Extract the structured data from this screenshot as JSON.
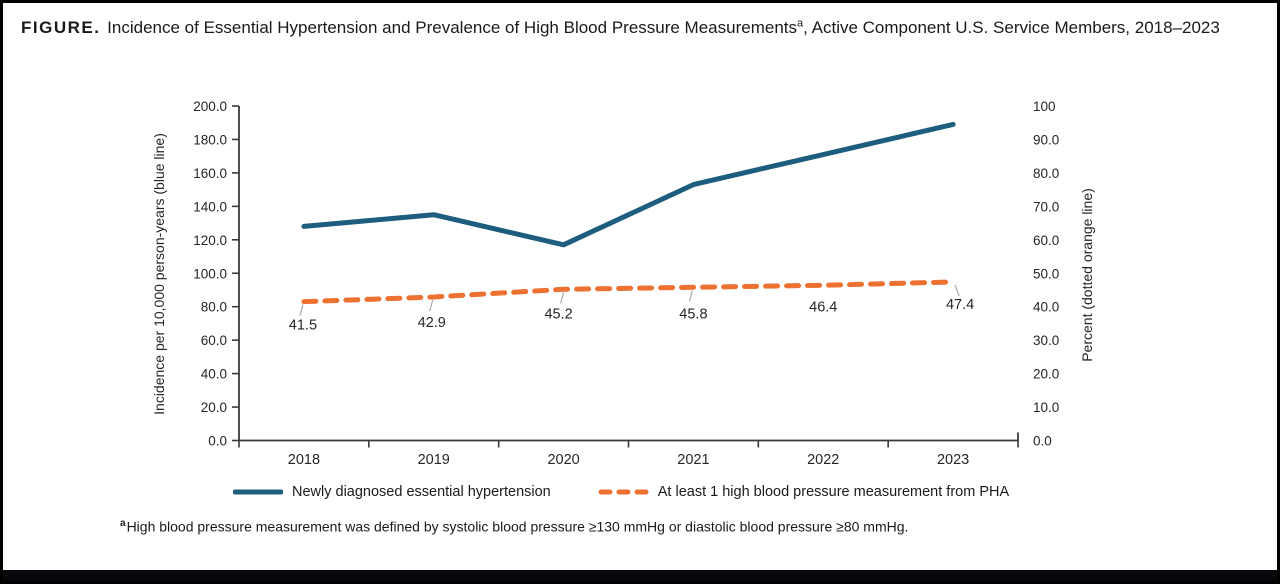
{
  "title": {
    "label": "FIGURE.",
    "text_before_sup": " Incidence of Essential Hypertension and Prevalence of High Blood Pressure Measurements",
    "superscript": "a",
    "text_after_sup": ", Active Component U.S. Service Members, 2018–2023"
  },
  "footnote": {
    "superscript": "a",
    "text": "High blood pressure measurement was defined by systolic blood pressure ≥130 mmHg or diastolic blood pressure ≥80 mmHg."
  },
  "legend": {
    "items": [
      {
        "label": "Newly diagnosed essential hypertension",
        "color": "#1d5d7e",
        "style": "solid"
      },
      {
        "label": "At least 1 high blood pressure measurement from PHA",
        "color": "#ed7232",
        "style": "dashed"
      }
    ]
  },
  "colors": {
    "blue_line": "#1d5d7e",
    "orange_line": "#ed7232",
    "axis": "#3a3a3a",
    "tick_text": "#262626",
    "leader_line": "#aaaaaa",
    "frame_bar": "#08080c"
  },
  "chart_data": {
    "type": "line",
    "categories": [
      "2018",
      "2019",
      "2020",
      "2021",
      "2022",
      "2023"
    ],
    "series": [
      {
        "name": "Newly diagnosed essential hypertension",
        "axis": "left",
        "style": "solid",
        "color": "#1d5d7e",
        "values": [
          128,
          135,
          117,
          153,
          171,
          189
        ]
      },
      {
        "name": "At least 1 high blood pressure measurement from PHA",
        "axis": "right",
        "style": "dashed",
        "color": "#ed7232",
        "values": [
          41.5,
          42.9,
          45.2,
          45.8,
          46.4,
          47.4
        ],
        "labels": [
          "41.5",
          "42.9",
          "45.2",
          "45.8",
          "46.4",
          "47.4"
        ]
      }
    ],
    "left_axis": {
      "title": "Incidence per 10,000 person-years (blue line)",
      "ticks": [
        "0.0",
        "20.0",
        "40.0",
        "60.0",
        "80.0",
        "100.0",
        "120.0",
        "140.0",
        "160.0",
        "180.0",
        "200.0"
      ],
      "range": [
        0,
        200
      ]
    },
    "right_axis": {
      "title": "Percent (dotted orange line)",
      "ticks": [
        "0.0",
        "10.0",
        "20.0",
        "30.0",
        "40.0",
        "50.0",
        "60.0",
        "70.0",
        "80.0",
        "90.0",
        "100"
      ],
      "range": [
        0,
        100
      ]
    },
    "grid": false,
    "legend_position": "bottom"
  }
}
